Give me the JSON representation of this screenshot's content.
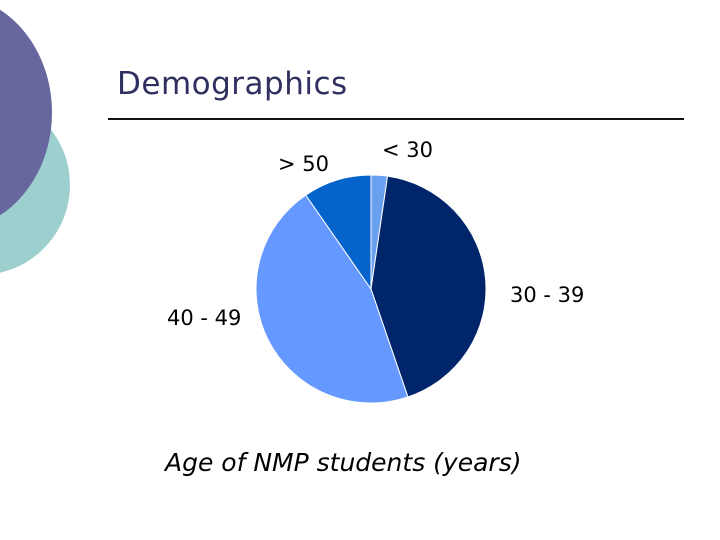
{
  "slide": {
    "title": "Demographics"
  },
  "chart_data": {
    "type": "pie",
    "title": "Age of NMP students (years)",
    "categories": [
      "< 30",
      "30 - 39",
      "40 - 49",
      "> 50"
    ],
    "values": [
      2.3,
      42.5,
      45.6,
      9.6
    ],
    "unit": "percent (estimated)",
    "colors": [
      "#6aa0f0",
      "#00256a",
      "#6699ff",
      "#0563cc"
    ],
    "legend": "none (category labels placed beside slices)"
  }
}
